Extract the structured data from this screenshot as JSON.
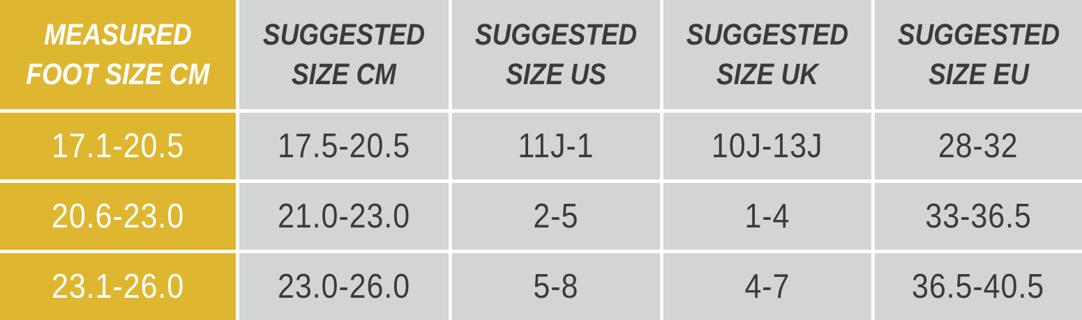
{
  "colors": {
    "brand_gold": "#dfb62f",
    "cell_gray": "#d3d5d5",
    "dark_text": "#393b3d",
    "light_text": "#ffffff",
    "gridline": "#ffffff"
  },
  "table": {
    "headers": [
      "MEASURED\nFOOT SIZE CM",
      "SUGGESTED\nSIZE CM",
      "SUGGESTED\nSIZE US",
      "SUGGESTED\nSIZE UK",
      "SUGGESTED\nSIZE EU"
    ],
    "rows": [
      [
        "17.1-20.5",
        "17.5-20.5",
        "11J-1",
        "10J-13J",
        "28-32"
      ],
      [
        "20.6-23.0",
        "21.0-23.0",
        "2-5",
        "1-4",
        "33-36.5"
      ],
      [
        "23.1-26.0",
        "23.0-26.0",
        "5-8",
        "4-7",
        "36.5-40.5"
      ]
    ]
  },
  "chart_data": {
    "type": "table",
    "columns": [
      "MEASURED FOOT SIZE CM",
      "SUGGESTED SIZE CM",
      "SUGGESTED SIZE US",
      "SUGGESTED SIZE UK",
      "SUGGESTED SIZE EU"
    ],
    "rows": [
      [
        "17.1-20.5",
        "17.5-20.5",
        "11J-1",
        "10J-13J",
        "28-32"
      ],
      [
        "20.6-23.0",
        "21.0-23.0",
        "2-5",
        "1-4",
        "33-36.5"
      ],
      [
        "23.1-26.0",
        "23.0-26.0",
        "5-8",
        "4-7",
        "36.5-40.5"
      ]
    ],
    "title": "",
    "legend": "none",
    "notes": "Footwear size conversion chart; first column highlighted in brand gold"
  }
}
